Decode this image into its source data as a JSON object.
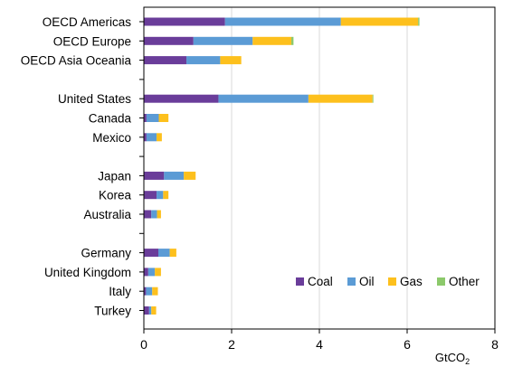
{
  "chart_data": {
    "type": "bar",
    "orientation": "horizontal",
    "stacked": true,
    "title": "",
    "xlabel_main": "GtCO",
    "xlabel_sub": "2",
    "ylabel": "",
    "xlim": [
      0,
      8
    ],
    "xticks": [
      0,
      2,
      4,
      6,
      8
    ],
    "grid": "vertical",
    "legend_position": "bottom-right",
    "categories": [
      "OECD Americas",
      "OECD Europe",
      "OECD Asia Oceania",
      "",
      "United States",
      "Canada",
      "Mexico",
      "",
      "Japan",
      "Korea",
      "Australia",
      "",
      "Germany",
      "United Kingdom",
      "Italy",
      "Turkey"
    ],
    "series": [
      {
        "name": "Coal",
        "color": "#6a3d9a",
        "values": [
          1.85,
          1.13,
          0.97,
          null,
          1.7,
          0.06,
          0.06,
          null,
          0.46,
          0.29,
          0.17,
          null,
          0.33,
          0.1,
          0.05,
          0.12
        ]
      },
      {
        "name": "Oil",
        "color": "#5b9bd5",
        "values": [
          2.64,
          1.35,
          0.77,
          null,
          2.05,
          0.28,
          0.23,
          null,
          0.45,
          0.15,
          0.13,
          null,
          0.26,
          0.15,
          0.14,
          0.05
        ]
      },
      {
        "name": "Gas",
        "color": "#fdc01d",
        "values": [
          1.76,
          0.88,
          0.48,
          null,
          1.46,
          0.22,
          0.12,
          null,
          0.27,
          0.12,
          0.09,
          null,
          0.15,
          0.14,
          0.13,
          0.11
        ]
      },
      {
        "name": "Other",
        "color": "#8cc96b",
        "values": [
          0.03,
          0.05,
          0.0,
          null,
          0.02,
          0.0,
          0.0,
          null,
          0.0,
          0.0,
          0.0,
          null,
          0.0,
          0.0,
          0.0,
          0.0
        ]
      }
    ]
  }
}
